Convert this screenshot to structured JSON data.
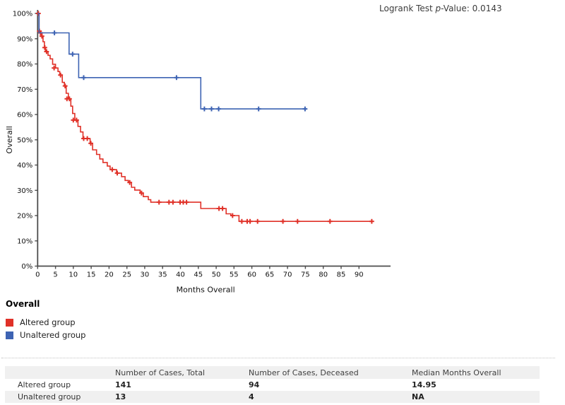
{
  "chart": {
    "pvalue": {
      "prefix": "Logrank Test ",
      "italic": "p",
      "suffix": "-Value: 0.0143"
    }
  },
  "chart_data": {
    "type": "line",
    "subtype": "kaplan-meier-step",
    "title": "",
    "xlabel": "Months Overall",
    "ylabel": "Overall",
    "xlim": [
      0,
      99
    ],
    "ylim": [
      0,
      100
    ],
    "grid": false,
    "legend_position": "below-left",
    "xticks": [
      0,
      5,
      10,
      15,
      20,
      25,
      30,
      35,
      40,
      45,
      50,
      55,
      60,
      65,
      70,
      75,
      80,
      85,
      90
    ],
    "yticks": [
      {
        "v": 0,
        "label": "0%"
      },
      {
        "v": 10,
        "label": "10%"
      },
      {
        "v": 20,
        "label": "20%"
      },
      {
        "v": 30,
        "label": "30%"
      },
      {
        "v": 40,
        "label": "40%"
      },
      {
        "v": 50,
        "label": "50%"
      },
      {
        "v": 60,
        "label": "60%"
      },
      {
        "v": 70,
        "label": "70%"
      },
      {
        "v": 80,
        "label": "80%"
      },
      {
        "v": 90,
        "label": "90%"
      },
      {
        "v": 100,
        "label": "100%"
      }
    ],
    "series": [
      {
        "name": "Altered group",
        "color": "#e03128",
        "steps": [
          [
            0,
            100
          ],
          [
            0.4,
            93.0
          ],
          [
            0.8,
            92.3
          ],
          [
            1.1,
            91.0
          ],
          [
            1.5,
            88.8
          ],
          [
            1.9,
            86.5
          ],
          [
            2.2,
            84.9
          ],
          [
            2.9,
            83.4
          ],
          [
            3.5,
            82.0
          ],
          [
            4.2,
            79.9
          ],
          [
            5.0,
            78.4
          ],
          [
            5.7,
            77.0
          ],
          [
            6.2,
            75.6
          ],
          [
            6.9,
            72.7
          ],
          [
            7.5,
            71.3
          ],
          [
            8.0,
            68.4
          ],
          [
            8.6,
            66.2
          ],
          [
            9.3,
            63.3
          ],
          [
            9.8,
            60.4
          ],
          [
            10.4,
            57.8
          ],
          [
            11.3,
            55.3
          ],
          [
            12.0,
            53.1
          ],
          [
            12.7,
            50.5
          ],
          [
            14.7,
            48.6
          ],
          [
            15.4,
            46.0
          ],
          [
            16.5,
            44.2
          ],
          [
            17.4,
            42.4
          ],
          [
            18.3,
            41.0
          ],
          [
            19.5,
            39.6
          ],
          [
            20.3,
            38.2
          ],
          [
            22.1,
            36.8
          ],
          [
            23.5,
            35.4
          ],
          [
            24.5,
            33.9
          ],
          [
            25.4,
            33.1
          ],
          [
            26.3,
            31.2
          ],
          [
            27.2,
            30.1
          ],
          [
            28.7,
            28.9
          ],
          [
            29.6,
            27.5
          ],
          [
            31.0,
            26.3
          ],
          [
            31.7,
            25.3
          ],
          [
            45.7,
            22.8
          ],
          [
            52.8,
            20.7
          ],
          [
            54.1,
            20.0
          ],
          [
            56.4,
            17.7
          ]
        ],
        "end": 93.6,
        "censors": [
          [
            0.2,
            100
          ],
          [
            0.5,
            93.0
          ],
          [
            0.8,
            92.3
          ],
          [
            1.2,
            91.0
          ],
          [
            2.0,
            86.5
          ],
          [
            2.5,
            84.9
          ],
          [
            4.6,
            78.4
          ],
          [
            6.4,
            75.6
          ],
          [
            7.7,
            71.3
          ],
          [
            8.2,
            66.2
          ],
          [
            8.9,
            66.2
          ],
          [
            10.0,
            57.8
          ],
          [
            10.9,
            57.8
          ],
          [
            12.9,
            50.5
          ],
          [
            13.9,
            50.5
          ],
          [
            14.9,
            48.6
          ],
          [
            20.9,
            38.2
          ],
          [
            22.3,
            36.8
          ],
          [
            25.8,
            33.1
          ],
          [
            29.1,
            28.9
          ],
          [
            34.0,
            25.3
          ],
          [
            36.8,
            25.3
          ],
          [
            37.9,
            25.3
          ],
          [
            39.9,
            25.3
          ],
          [
            40.8,
            25.3
          ],
          [
            41.7,
            25.3
          ],
          [
            50.8,
            22.8
          ],
          [
            51.8,
            22.8
          ],
          [
            54.6,
            20.0
          ],
          [
            57.2,
            17.7
          ],
          [
            58.7,
            17.7
          ],
          [
            59.5,
            17.7
          ],
          [
            61.6,
            17.7
          ],
          [
            68.7,
            17.7
          ],
          [
            72.8,
            17.7
          ],
          [
            81.9,
            17.7
          ],
          [
            93.6,
            17.7
          ]
        ]
      },
      {
        "name": "Unaltered group",
        "color": "#3d63b3",
        "steps": [
          [
            0,
            100
          ],
          [
            0.4,
            92.3
          ],
          [
            8.8,
            83.9
          ],
          [
            11.5,
            74.6
          ],
          [
            45.7,
            62.2
          ]
        ],
        "end": 75.1,
        "censors": [
          [
            4.7,
            92.3
          ],
          [
            9.8,
            83.9
          ],
          [
            12.9,
            74.6
          ],
          [
            38.9,
            74.6
          ],
          [
            46.7,
            62.2
          ],
          [
            48.7,
            62.2
          ],
          [
            50.7,
            62.2
          ],
          [
            61.9,
            62.2
          ],
          [
            74.9,
            62.2
          ]
        ]
      }
    ]
  },
  "legend": {
    "title": "Overall",
    "items": [
      {
        "label": "Altered group",
        "color": "#e03128"
      },
      {
        "label": "Unaltered group",
        "color": "#3d63b3"
      }
    ]
  },
  "table": {
    "columns": [
      "",
      "Number of Cases, Total",
      "Number of Cases, Deceased",
      "Median Months Overall"
    ],
    "rows": [
      {
        "group": "Altered group",
        "total": "141",
        "deceased": "94",
        "median": "14.95"
      },
      {
        "group": "Unaltered group",
        "total": "13",
        "deceased": "4",
        "median": "NA"
      }
    ]
  }
}
